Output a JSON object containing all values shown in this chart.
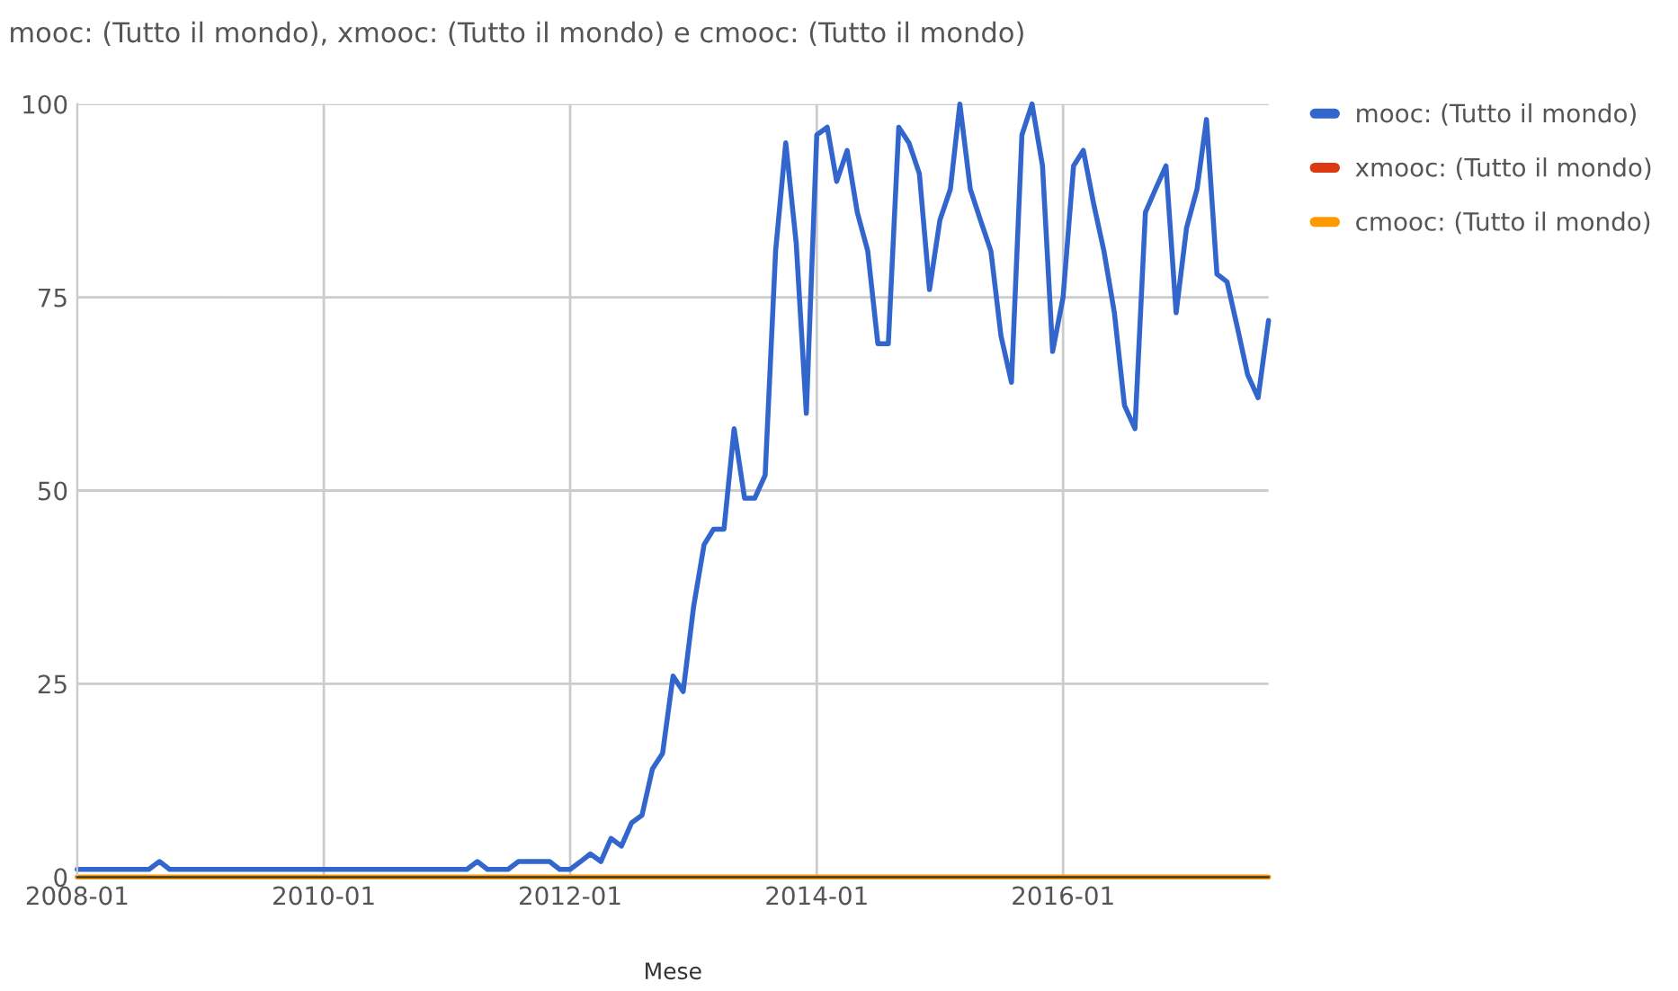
{
  "chart_data": {
    "type": "line",
    "title": "mooc: (Tutto il mondo), xmooc: (Tutto il mondo) e cmooc: (Tutto il mondo)",
    "xlabel": "Mese",
    "x": [
      "2008-01",
      "2008-02",
      "2008-03",
      "2008-04",
      "2008-05",
      "2008-06",
      "2008-07",
      "2008-08",
      "2008-09",
      "2008-10",
      "2008-11",
      "2008-12",
      "2009-01",
      "2009-02",
      "2009-03",
      "2009-04",
      "2009-05",
      "2009-06",
      "2009-07",
      "2009-08",
      "2009-09",
      "2009-10",
      "2009-11",
      "2009-12",
      "2010-01",
      "2010-02",
      "2010-03",
      "2010-04",
      "2010-05",
      "2010-06",
      "2010-07",
      "2010-08",
      "2010-09",
      "2010-10",
      "2010-11",
      "2010-12",
      "2011-01",
      "2011-02",
      "2011-03",
      "2011-04",
      "2011-05",
      "2011-06",
      "2011-07",
      "2011-08",
      "2011-09",
      "2011-10",
      "2011-11",
      "2011-12",
      "2012-01",
      "2012-02",
      "2012-03",
      "2012-04",
      "2012-05",
      "2012-06",
      "2012-07",
      "2012-08",
      "2012-09",
      "2012-10",
      "2012-11",
      "2012-12",
      "2013-01",
      "2013-02",
      "2013-03",
      "2013-04",
      "2013-05",
      "2013-06",
      "2013-07",
      "2013-08",
      "2013-09",
      "2013-10",
      "2013-11",
      "2013-12",
      "2014-01",
      "2014-02",
      "2014-03",
      "2014-04",
      "2014-05",
      "2014-06",
      "2014-07",
      "2014-08",
      "2014-09",
      "2014-10",
      "2014-11",
      "2014-12",
      "2015-01",
      "2015-02",
      "2015-03",
      "2015-04",
      "2015-05",
      "2015-06",
      "2015-07",
      "2015-08",
      "2015-09",
      "2015-10",
      "2015-11",
      "2015-12",
      "2016-01",
      "2016-02",
      "2016-03",
      "2016-04",
      "2016-05",
      "2016-06",
      "2016-07",
      "2016-08",
      "2016-09",
      "2016-10",
      "2016-11",
      "2016-12",
      "2017-01",
      "2017-02",
      "2017-03",
      "2017-04",
      "2017-05",
      "2017-06",
      "2017-07",
      "2017-08",
      "2017-09"
    ],
    "series": [
      {
        "name": "mooc: (Tutto il mondo)",
        "color": "#3366cc",
        "values": [
          1,
          1,
          1,
          1,
          1,
          1,
          1,
          1,
          2,
          1,
          1,
          1,
          1,
          1,
          1,
          1,
          1,
          1,
          1,
          1,
          1,
          1,
          1,
          1,
          1,
          1,
          1,
          1,
          1,
          1,
          1,
          1,
          1,
          1,
          1,
          1,
          1,
          1,
          1,
          2,
          1,
          1,
          1,
          2,
          2,
          2,
          2,
          1,
          1,
          2,
          3,
          2,
          5,
          4,
          7,
          8,
          14,
          16,
          26,
          24,
          35,
          43,
          45,
          45,
          58,
          49,
          49,
          52,
          81,
          95,
          82,
          60,
          96,
          97,
          90,
          94,
          86,
          81,
          69,
          69,
          97,
          95,
          91,
          76,
          85,
          89,
          100,
          89,
          85,
          81,
          70,
          64,
          96,
          100,
          92,
          68,
          75,
          92,
          94,
          87,
          81,
          73,
          61,
          58,
          86,
          89,
          92,
          73,
          84,
          89,
          98,
          78,
          77,
          71,
          65,
          62,
          72
        ]
      },
      {
        "name": "xmooc: (Tutto il mondo)",
        "color": "#dc3912",
        "values": [
          null,
          null,
          null,
          null,
          null,
          null,
          null,
          null,
          null,
          null,
          null,
          null,
          null,
          null,
          null,
          null,
          null,
          null,
          null,
          null,
          null,
          null,
          null,
          null,
          null,
          null,
          null,
          null,
          null,
          null,
          null,
          null,
          null,
          null,
          null,
          null,
          null,
          null,
          null,
          null,
          null,
          null,
          null,
          null,
          null,
          null,
          null,
          null,
          null,
          null,
          null,
          null,
          null,
          null,
          null,
          null,
          null,
          null,
          null,
          null,
          null,
          null,
          null,
          null,
          null,
          null,
          null,
          null,
          null,
          null,
          null,
          null,
          null,
          null,
          null,
          null,
          null,
          null,
          null,
          null,
          null,
          null,
          null,
          null,
          null,
          null,
          null,
          null,
          null,
          null,
          null,
          null,
          null,
          null,
          null,
          null,
          null,
          null,
          null,
          null,
          null,
          null,
          null,
          null,
          null,
          null,
          null,
          null,
          null,
          null,
          null,
          null,
          null,
          null,
          null,
          null,
          null
        ]
      },
      {
        "name": "cmooc: (Tutto il mondo)",
        "color": "#ff9900",
        "values": [
          0,
          0,
          0,
          0,
          0,
          0,
          0,
          0,
          0,
          0,
          0,
          0,
          0,
          0,
          0,
          0,
          0,
          0,
          0,
          0,
          0,
          0,
          0,
          0,
          0,
          0,
          0,
          0,
          0,
          0,
          0,
          0,
          0,
          0,
          0,
          0,
          0,
          0,
          0,
          0,
          0,
          0,
          0,
          0,
          0,
          0,
          0,
          0,
          0,
          0,
          0,
          0,
          0,
          0,
          0,
          0,
          0,
          0,
          0,
          0,
          0,
          0,
          0,
          0,
          0,
          0,
          0,
          0,
          0,
          0,
          0,
          0,
          0,
          0,
          0,
          0,
          0,
          0,
          0,
          0,
          0,
          0,
          0,
          0,
          0,
          0,
          0,
          0,
          0,
          0,
          0,
          0,
          0,
          0,
          0,
          0,
          0,
          0,
          0,
          0,
          0,
          0,
          0,
          0,
          0,
          0,
          0,
          0,
          0,
          0,
          0,
          0,
          0,
          0,
          0,
          0,
          0
        ]
      }
    ],
    "xlim": [
      "2008-01",
      "2017-09"
    ],
    "xticks": [
      "2008-01",
      "2010-01",
      "2012-01",
      "2014-01",
      "2016-01"
    ],
    "ylim": [
      0,
      100
    ],
    "yticks": [
      0,
      25,
      50,
      75,
      100
    ],
    "grid": true,
    "legend": "top right",
    "marker": "none",
    "line_style": "solid"
  }
}
